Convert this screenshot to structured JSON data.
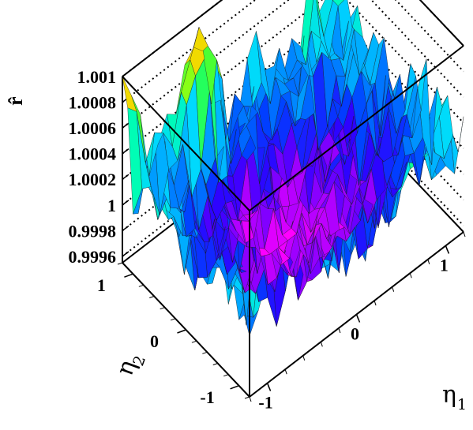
{
  "chart_data": {
    "type": "surface",
    "z_label": "r̂",
    "x_label_symbol": "η",
    "x_label_sub": "1",
    "y_label_symbol": "η",
    "y_label_sub": "2",
    "x_ticks": [
      -1,
      0,
      1
    ],
    "x_tick_labels": [
      "-1",
      "0",
      "1"
    ],
    "y_ticks": [
      -1,
      0,
      1
    ],
    "y_tick_labels": [
      "-1",
      "0",
      "1"
    ],
    "z_ticks": [
      0.9996,
      0.9998,
      1,
      1.0002,
      1.0004,
      1.0006,
      1.0008,
      1.001
    ],
    "z_tick_labels": [
      "0.9996",
      "0.9998",
      "1",
      "1.0002",
      "1.0004",
      "1.0006",
      "1.0008",
      "1.001"
    ],
    "xlim": [
      -1.2,
      1.2
    ],
    "ylim": [
      -1.2,
      1.2
    ],
    "zlim": [
      0.99955,
      1.001
    ],
    "grid": true,
    "colormap": [
      "#ff00ff",
      "#9a00ff",
      "#3000ff",
      "#0040ff",
      "#0090ff",
      "#00d8ff",
      "#00ffb0",
      "#30ff40",
      "#b8ff00",
      "#ffd000",
      "#ff6000"
    ],
    "grid_size": 24,
    "surface": {
      "description_of_values": "central bowl minimum ~0.99965 near (0,0) rising to ~1.0003 at edges, with sharp spikes to ~1.001 at corners",
      "center_value": 0.99965,
      "edge_value": 1.00025,
      "corner_spikes": [
        {
          "x": -1.2,
          "y": 1.2,
          "z": 1.001
        },
        {
          "x": 1.2,
          "y": 1.2,
          "z": 1.0006
        },
        {
          "x": -0.4,
          "y": 1.1,
          "z": 1.001
        }
      ]
    }
  }
}
